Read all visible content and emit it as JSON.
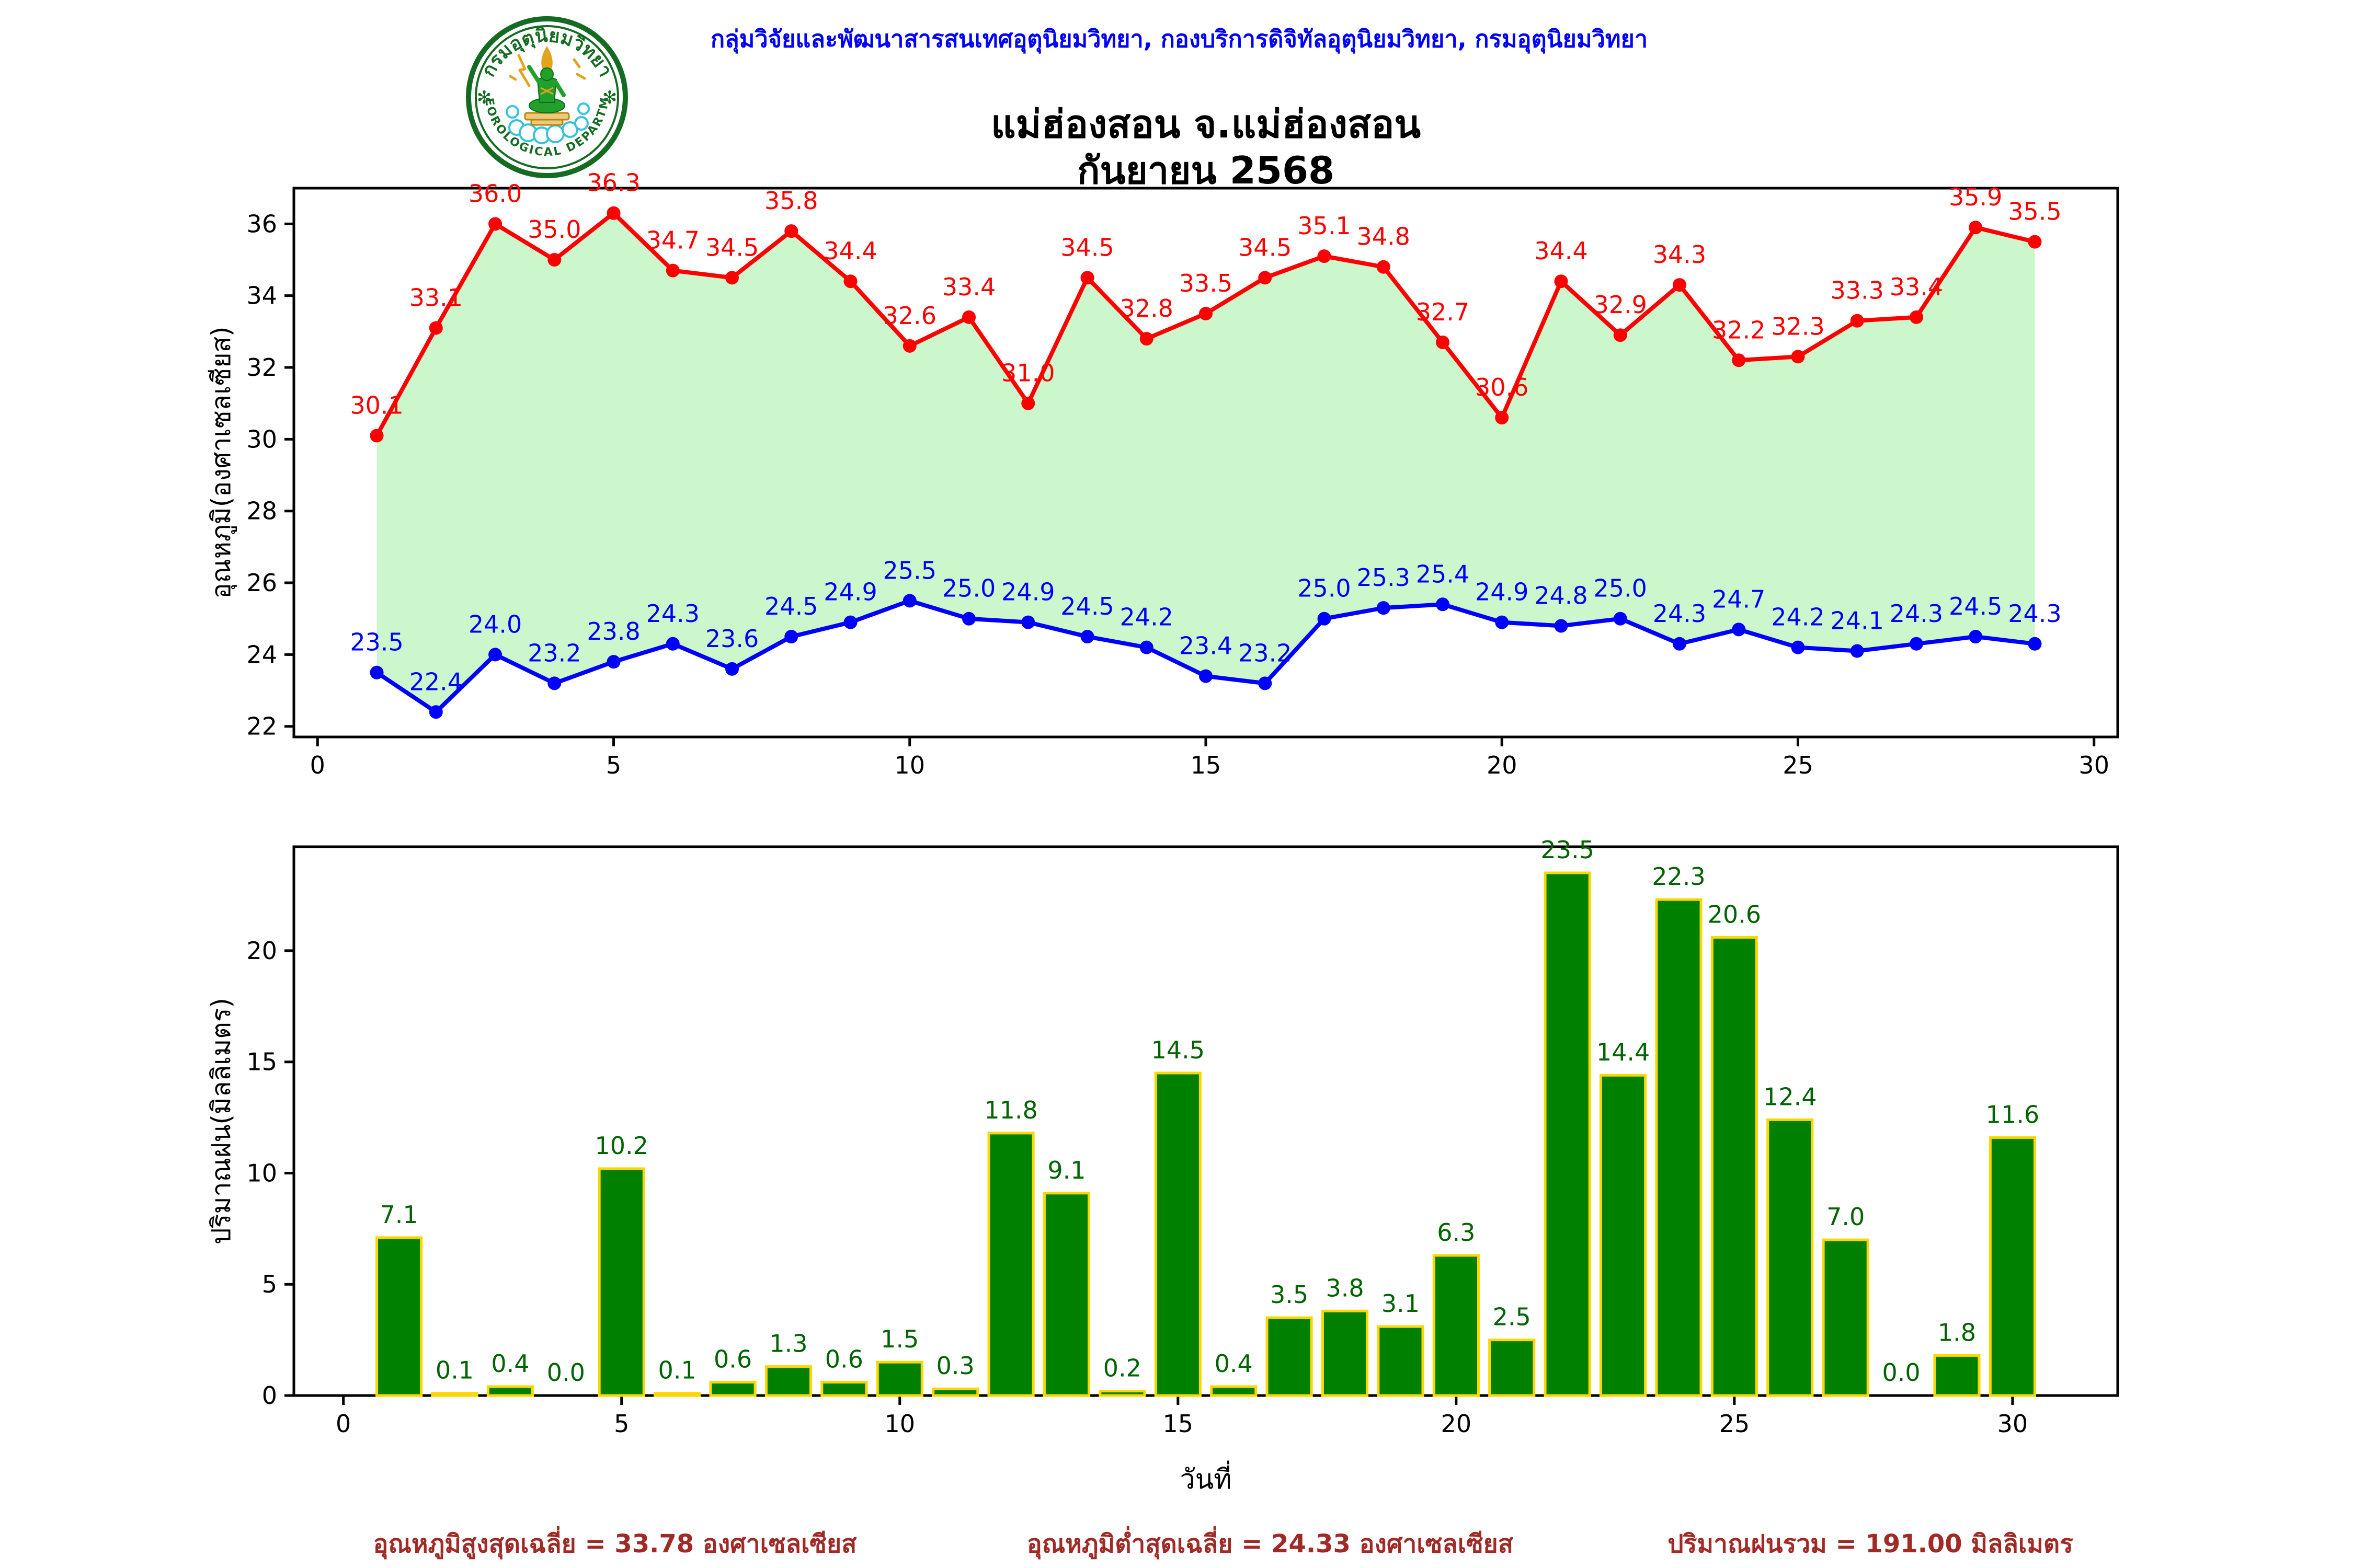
{
  "header": {
    "department_line": "กลุ่มวิจัยและพัฒนาสารสนเทศอุตุนิยมวิทยา, กองบริการดิจิทัลอุตุนิยมวิทยา, กรมอุตุนิยมวิทยา",
    "title_line1": "แม่ฮ่องสอน จ.แม่ฮ่องสอน",
    "title_line2": "กันยายน 2568",
    "logo": {
      "thai_text": "กรมอุตุนิยมวิทยา",
      "english_text": "METEOROLOGICAL DEPARTMENT"
    }
  },
  "chart_data": [
    {
      "type": "line",
      "ylabel": "อุณหภูมิ(องศาเซลเซียส)",
      "xlabel": "",
      "x": [
        1,
        2,
        3,
        4,
        5,
        6,
        7,
        8,
        9,
        10,
        11,
        12,
        13,
        14,
        15,
        16,
        17,
        18,
        19,
        20,
        21,
        22,
        23,
        24,
        25,
        26,
        27,
        28,
        29
      ],
      "series": [
        {
          "name": "max-temperature",
          "color": "#ff0000",
          "values": [
            30.1,
            33.1,
            36.0,
            35.0,
            36.3,
            34.7,
            34.5,
            35.8,
            34.4,
            32.6,
            33.4,
            31.0,
            34.5,
            32.8,
            33.5,
            34.5,
            35.1,
            34.8,
            32.7,
            30.6,
            34.4,
            32.9,
            34.3,
            32.2,
            32.3,
            33.3,
            33.4,
            35.9,
            35.5
          ]
        },
        {
          "name": "min-temperature",
          "color": "#0000ff",
          "values": [
            23.5,
            22.4,
            24.0,
            23.2,
            23.8,
            24.3,
            23.6,
            24.5,
            24.9,
            25.5,
            25.0,
            24.9,
            24.5,
            24.2,
            23.4,
            23.2,
            25.0,
            25.3,
            25.4,
            24.9,
            24.8,
            25.0,
            24.3,
            24.7,
            24.2,
            24.1,
            24.3,
            24.5,
            24.3
          ]
        }
      ],
      "fill_between_color": "#ccf7cc",
      "xlim": [
        -0.4,
        30.4
      ],
      "ylim": [
        21.705,
        36.995
      ],
      "xticks": [
        0,
        5,
        10,
        15,
        20,
        25,
        30
      ],
      "yticks": [
        22,
        24,
        26,
        28,
        30,
        32,
        34,
        36
      ],
      "grid": false,
      "legend": "none"
    },
    {
      "type": "bar",
      "ylabel": "ปริมาณฝน(มิลลิเมตร)",
      "xlabel": "วันที่",
      "x": [
        1,
        2,
        3,
        4,
        5,
        6,
        7,
        8,
        9,
        10,
        11,
        12,
        13,
        14,
        15,
        16,
        17,
        18,
        19,
        20,
        21,
        22,
        23,
        24,
        25,
        26,
        27,
        28,
        29,
        30
      ],
      "values": [
        7.1,
        0.1,
        0.4,
        0.0,
        10.2,
        0.1,
        0.6,
        1.3,
        0.6,
        1.5,
        0.3,
        11.8,
        9.1,
        0.2,
        14.5,
        0.4,
        3.5,
        3.8,
        3.1,
        6.3,
        2.5,
        23.5,
        14.4,
        22.3,
        20.6,
        12.4,
        7.0,
        0.0,
        1.8,
        11.6
      ],
      "bar_color": "#008000",
      "bar_edge_color": "#ffd700",
      "label_color": "#006400",
      "xlim": [
        -0.89,
        31.89
      ],
      "ylim": [
        0,
        24.675
      ],
      "xticks": [
        0,
        5,
        10,
        15,
        20,
        25,
        30
      ],
      "yticks": [
        0,
        5,
        10,
        15,
        20
      ],
      "grid": false,
      "legend": "none"
    }
  ],
  "summary": {
    "avg_max": "อุณหภูมิสูงสุดเฉลี่ย = 33.78 องศาเซลเซียส",
    "avg_min": "อุณหภูมิต่ำสุดเฉลี่ย = 24.33 องศาเซลเซียส",
    "total_rain": "ปริมาณฝนรวม = 191.00 มิลลิเมตร"
  },
  "colors": {
    "header_text": "#0000ff",
    "title_text": "#000000",
    "max_line": "#ff0000",
    "min_line": "#0000ff",
    "fill_area": "#ccf7cc",
    "bar_fill": "#008000",
    "bar_edge": "#ffd700",
    "bar_label": "#006400",
    "summary_text": "#a02a26",
    "axis": "#000000",
    "logo_green": "#146b21",
    "logo_gold": "#e2a41c",
    "logo_cloud": "#35c3dd"
  }
}
